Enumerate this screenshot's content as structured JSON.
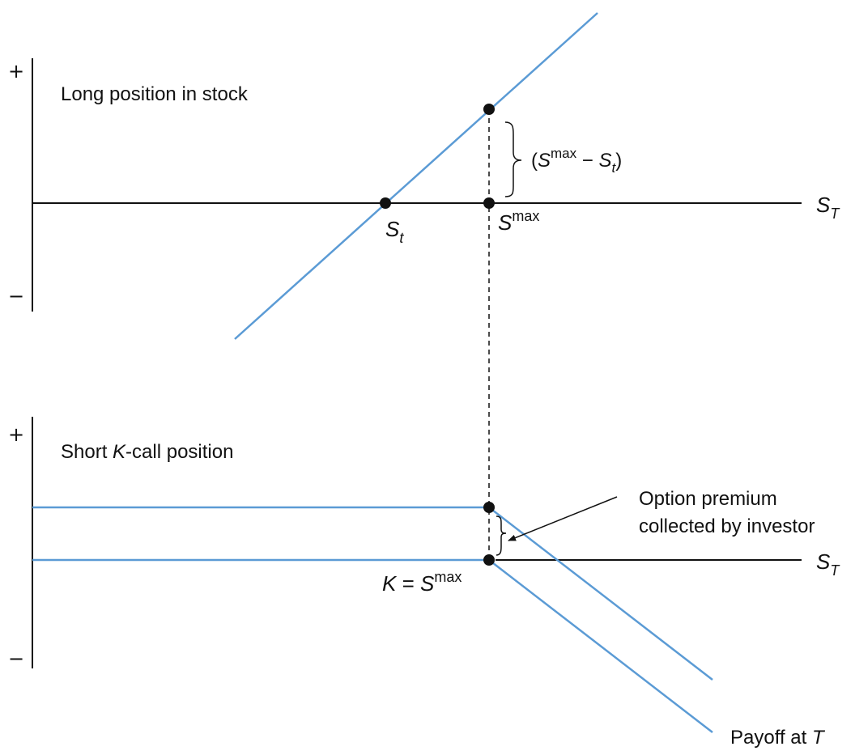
{
  "top_panel": {
    "title": "Long position in stock",
    "plus": "+",
    "minus": "−",
    "axis_label": {
      "main": "S",
      "sub": "T"
    },
    "point_st": {
      "main": "S",
      "sub": "t"
    },
    "point_smax": {
      "main": "S",
      "sup": "max"
    },
    "bracket_label": {
      "open": "(",
      "s1": "S",
      "sup": "max",
      "minus": " − ",
      "s2": "S",
      "sub": "t",
      "close": ")"
    }
  },
  "bottom_panel": {
    "title_pre": "Short ",
    "title_k": "K",
    "title_post": "-call position",
    "plus": "+",
    "minus": "−",
    "axis_label": {
      "main": "S",
      "sub": "T"
    },
    "strike_label": {
      "k": "K",
      "eq": " = ",
      "s": "S",
      "sup": "max"
    },
    "premium_note": [
      "Option premium",
      "collected by investor"
    ],
    "payoff_label": {
      "text": "Payoff at ",
      "t": "T"
    }
  },
  "colors": {
    "payoff_line": "#5b9bd5",
    "axis": "#111111",
    "point": "#111111"
  }
}
